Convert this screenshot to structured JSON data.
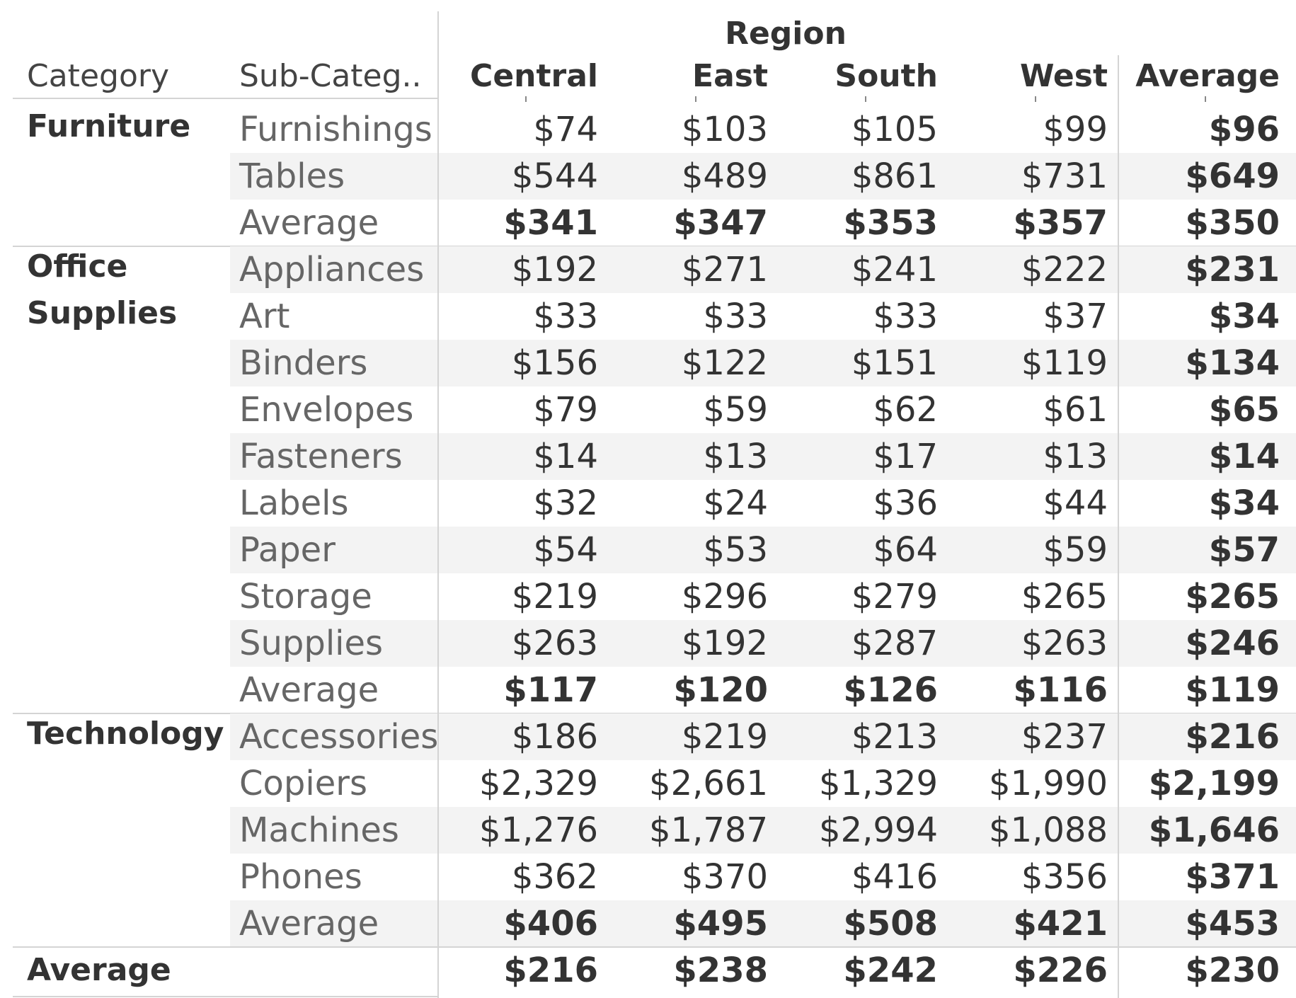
{
  "header": {
    "region_label": "Region",
    "category_label": "Category",
    "subcategory_label": "Sub-Categ..",
    "columns": [
      "Central",
      "East",
      "South",
      "West",
      "Average"
    ]
  },
  "chart_data": {
    "type": "table",
    "title": "",
    "column_group": "Region",
    "columns": [
      "Central",
      "East",
      "South",
      "West",
      "Average"
    ],
    "groups": [
      {
        "category": "Furniture",
        "rows": [
          {
            "subcategory": "Furnishings",
            "values": [
              "$74",
              "$103",
              "$105",
              "$99",
              "$96"
            ]
          },
          {
            "subcategory": "Tables",
            "values": [
              "$544",
              "$489",
              "$861",
              "$731",
              "$649"
            ]
          },
          {
            "subcategory": "Average",
            "values": [
              "$341",
              "$347",
              "$353",
              "$357",
              "$350"
            ]
          }
        ]
      },
      {
        "category": "Office Supplies",
        "rows": [
          {
            "subcategory": "Appliances",
            "values": [
              "$192",
              "$271",
              "$241",
              "$222",
              "$231"
            ]
          },
          {
            "subcategory": "Art",
            "values": [
              "$33",
              "$33",
              "$33",
              "$37",
              "$34"
            ]
          },
          {
            "subcategory": "Binders",
            "values": [
              "$156",
              "$122",
              "$151",
              "$119",
              "$134"
            ]
          },
          {
            "subcategory": "Envelopes",
            "values": [
              "$79",
              "$59",
              "$62",
              "$61",
              "$65"
            ]
          },
          {
            "subcategory": "Fasteners",
            "values": [
              "$14",
              "$13",
              "$17",
              "$13",
              "$14"
            ]
          },
          {
            "subcategory": "Labels",
            "values": [
              "$32",
              "$24",
              "$36",
              "$44",
              "$34"
            ]
          },
          {
            "subcategory": "Paper",
            "values": [
              "$54",
              "$53",
              "$64",
              "$59",
              "$57"
            ]
          },
          {
            "subcategory": "Storage",
            "values": [
              "$219",
              "$296",
              "$279",
              "$265",
              "$265"
            ]
          },
          {
            "subcategory": "Supplies",
            "values": [
              "$263",
              "$192",
              "$287",
              "$263",
              "$246"
            ]
          },
          {
            "subcategory": "Average",
            "values": [
              "$117",
              "$120",
              "$126",
              "$116",
              "$119"
            ]
          }
        ]
      },
      {
        "category": "Technology",
        "rows": [
          {
            "subcategory": "Accessories",
            "values": [
              "$186",
              "$219",
              "$213",
              "$237",
              "$216"
            ]
          },
          {
            "subcategory": "Copiers",
            "values": [
              "$2,329",
              "$2,661",
              "$1,329",
              "$1,990",
              "$2,199"
            ]
          },
          {
            "subcategory": "Machines",
            "values": [
              "$1,276",
              "$1,787",
              "$2,994",
              "$1,088",
              "$1,646"
            ]
          },
          {
            "subcategory": "Phones",
            "values": [
              "$362",
              "$370",
              "$416",
              "$356",
              "$371"
            ]
          },
          {
            "subcategory": "Average",
            "values": [
              "$406",
              "$495",
              "$508",
              "$421",
              "$453"
            ]
          }
        ]
      }
    ],
    "grand_total": {
      "label": "Average",
      "values": [
        "$216",
        "$238",
        "$242",
        "$226",
        "$230"
      ]
    }
  }
}
